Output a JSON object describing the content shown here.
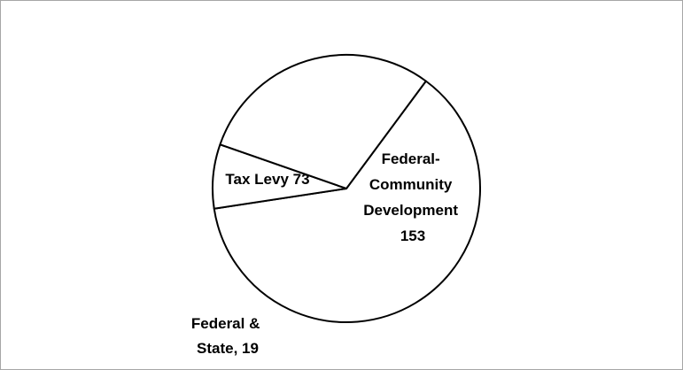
{
  "chart_data": {
    "type": "pie",
    "title": "",
    "slices": [
      {
        "label_lines": [
          "Federal-",
          "Community",
          "Development",
          "153"
        ],
        "name": "Federal-Community Development",
        "value": 153
      },
      {
        "label_lines": [
          "Federal &",
          "State, 19"
        ],
        "name": "Federal & State",
        "value": 19
      },
      {
        "label_lines": [
          "Tax Levy 73"
        ],
        "name": "Tax Levy",
        "value": 73
      }
    ],
    "colors": {
      "slice_fill": "#ffffff",
      "slice_stroke": "#000000",
      "frame_border": "#a6a6a6"
    },
    "legend": "none"
  }
}
